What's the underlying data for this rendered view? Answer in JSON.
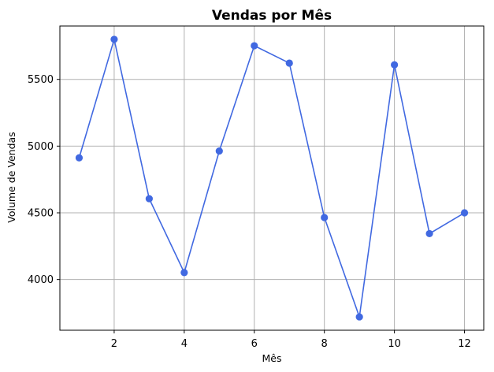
{
  "chart_data": {
    "type": "line",
    "title": "Vendas por Mês",
    "xlabel": "Mês",
    "ylabel": "Volume de Vendas",
    "x": [
      1,
      2,
      3,
      4,
      5,
      6,
      7,
      8,
      9,
      10,
      11,
      12
    ],
    "series": [
      {
        "values": [
          4912,
          5800,
          4606,
          4052,
          4963,
          5752,
          5622,
          4465,
          3720,
          5609,
          4344,
          4500
        ]
      }
    ],
    "xlim": [
      0.45,
      12.55
    ],
    "ylim": [
      3620,
      5900
    ],
    "xticks": [
      2,
      4,
      6,
      8,
      10,
      12
    ],
    "yticks": [
      4000,
      4500,
      5000,
      5500
    ],
    "grid": true,
    "line_color": "#4169e1",
    "grid_color": "#b0b0b0"
  }
}
